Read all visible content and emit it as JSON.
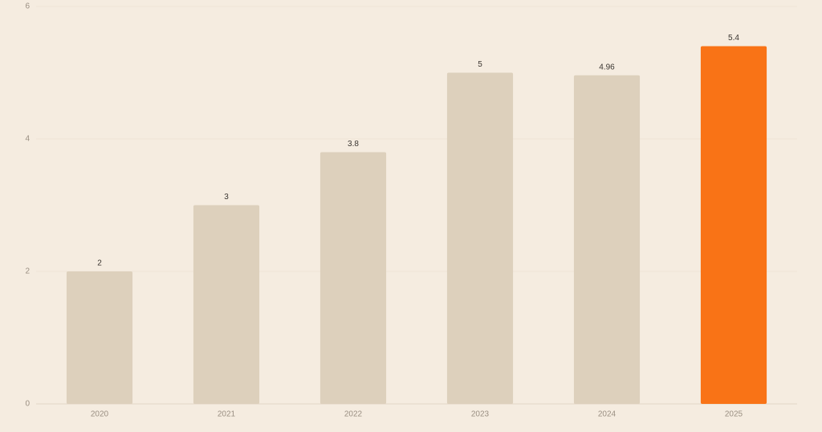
{
  "chart_data": {
    "type": "bar",
    "categories": [
      "2020",
      "2021",
      "2022",
      "2023",
      "2024",
      "2025"
    ],
    "values": [
      2,
      3,
      3.8,
      5,
      4.96,
      5.4
    ],
    "colors": [
      "#ddd0bc",
      "#ddd0bc",
      "#ddd0bc",
      "#ddd0bc",
      "#ddd0bc",
      "#f97316"
    ],
    "ylim": [
      0,
      6
    ],
    "yticks": [
      0,
      2,
      4,
      6
    ],
    "grid": true
  }
}
